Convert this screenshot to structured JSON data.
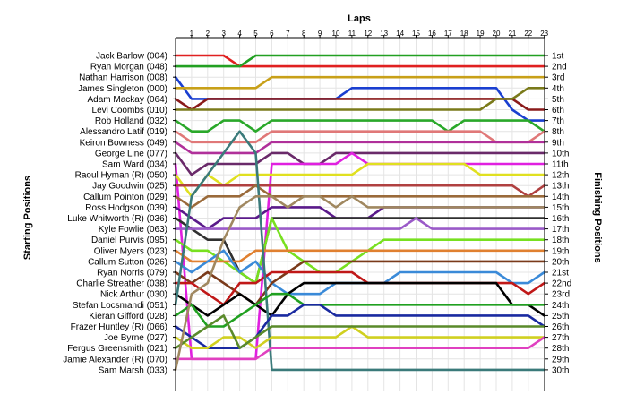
{
  "chart_data": {
    "type": "line",
    "title": "Laps",
    "left_title": "Starting Positions",
    "right_title": "Finishing Positions",
    "laps": [
      "1",
      "2",
      "3",
      "4",
      "5",
      "6",
      "7",
      "8",
      "9",
      "10",
      "11",
      "12",
      "13",
      "14",
      "15",
      "16",
      "17",
      "18",
      "19",
      "20",
      "21",
      "22",
      "23"
    ],
    "finish_labels": [
      "1st",
      "2nd",
      "3rd",
      "4th",
      "5th",
      "6th",
      "7th",
      "8th",
      "9th",
      "10th",
      "11th",
      "12th",
      "13th",
      "14th",
      "15th",
      "16th",
      "17th",
      "18th",
      "19th",
      "20th",
      "21st",
      "22nd",
      "23rd",
      "24th",
      "25th",
      "26th",
      "27th",
      "28th",
      "29th",
      "30th"
    ],
    "grid": true,
    "series": [
      {
        "name": "Jack Barlow (004)",
        "color": "#e02020",
        "positions": [
          1,
          1,
          1,
          1,
          2,
          2,
          2,
          2,
          2,
          2,
          2,
          2,
          2,
          2,
          2,
          2,
          2,
          2,
          2,
          2,
          2,
          2,
          2,
          2
        ]
      },
      {
        "name": "Ryan Morgan (048)",
        "color": "#22a022",
        "positions": [
          2,
          2,
          2,
          2,
          2,
          1,
          1,
          1,
          1,
          1,
          1,
          1,
          1,
          1,
          1,
          1,
          1,
          1,
          1,
          1,
          1,
          1,
          1,
          1
        ]
      },
      {
        "name": "Nathan Harrison (008)",
        "color": "#1a3fd0",
        "positions": [
          3,
          5,
          5,
          5,
          5,
          5,
          5,
          5,
          5,
          5,
          5,
          4,
          4,
          4,
          4,
          4,
          4,
          4,
          4,
          4,
          4,
          6,
          7,
          7
        ]
      },
      {
        "name": "James Singleton (000)",
        "color": "#c8a018",
        "positions": [
          4,
          4,
          4,
          4,
          4,
          4,
          3,
          3,
          3,
          3,
          3,
          3,
          3,
          3,
          3,
          3,
          3,
          3,
          3,
          3,
          3,
          3,
          3,
          3
        ]
      },
      {
        "name": "Adam Mackay (064)",
        "color": "#8a1a1a",
        "positions": [
          5,
          6,
          5,
          5,
          5,
          5,
          5,
          5,
          5,
          5,
          5,
          5,
          5,
          5,
          5,
          5,
          5,
          5,
          5,
          5,
          5,
          5,
          6,
          6
        ]
      },
      {
        "name": "Levi Coombs (010)",
        "color": "#7a7a1a",
        "positions": [
          6,
          6,
          6,
          6,
          6,
          6,
          6,
          6,
          6,
          6,
          6,
          6,
          6,
          6,
          6,
          6,
          6,
          6,
          6,
          6,
          5,
          5,
          4,
          4
        ]
      },
      {
        "name": "Rob Holland (032)",
        "color": "#2aa82a",
        "positions": [
          7,
          8,
          8,
          7,
          7,
          8,
          7,
          7,
          7,
          7,
          7,
          7,
          7,
          7,
          7,
          7,
          7,
          8,
          7,
          7,
          7,
          7,
          7,
          8
        ]
      },
      {
        "name": "Alessandro Latif (019)",
        "color": "#e07878",
        "positions": [
          8,
          9,
          9,
          9,
          9,
          9,
          8,
          8,
          8,
          8,
          8,
          8,
          8,
          8,
          8,
          8,
          8,
          8,
          8,
          8,
          9,
          9,
          9,
          8
        ]
      },
      {
        "name": "Keiron Bowness (049)",
        "color": "#b0309a",
        "positions": [
          9,
          10,
          10,
          10,
          10,
          10,
          9,
          9,
          9,
          9,
          9,
          9,
          9,
          9,
          9,
          9,
          9,
          9,
          9,
          9,
          9,
          9,
          9,
          9
        ]
      },
      {
        "name": "George Line (077)",
        "color": "#6a2a6a",
        "positions": [
          10,
          12,
          11,
          11,
          11,
          11,
          10,
          10,
          11,
          11,
          10,
          10,
          10,
          10,
          10,
          10,
          10,
          10,
          10,
          10,
          10,
          10,
          10,
          10
        ]
      },
      {
        "name": "Sam Ward (034)",
        "color": "#e020e0",
        "positions": [
          11,
          29,
          29,
          29,
          29,
          29,
          11,
          11,
          11,
          11,
          11,
          10,
          11,
          11,
          11,
          11,
          11,
          11,
          11,
          11,
          11,
          11,
          11,
          11
        ]
      },
      {
        "name": "Raoul Hyman (R) (050)",
        "color": "#e0e020",
        "positions": [
          12,
          14,
          12,
          13,
          12,
          12,
          12,
          12,
          12,
          12,
          12,
          12,
          11,
          11,
          11,
          11,
          11,
          11,
          11,
          12,
          12,
          12,
          12,
          12
        ]
      },
      {
        "name": "Jay Goodwin (025)",
        "color": "#b04040",
        "positions": [
          13,
          13,
          13,
          13,
          13,
          13,
          13,
          13,
          13,
          13,
          13,
          13,
          13,
          13,
          13,
          13,
          13,
          13,
          13,
          13,
          13,
          13,
          14,
          13
        ]
      },
      {
        "name": "Callum Pointon (029)",
        "color": "#9a6a3a",
        "positions": [
          14,
          15,
          14,
          14,
          14,
          13,
          14,
          14,
          14,
          14,
          14,
          14,
          14,
          14,
          14,
          14,
          14,
          14,
          14,
          14,
          14,
          14,
          14,
          14
        ]
      },
      {
        "name": "Ross Hodgson (039)",
        "color": "#5a1a8a",
        "positions": [
          15,
          16,
          17,
          16,
          16,
          16,
          15,
          15,
          15,
          15,
          16,
          16,
          16,
          15,
          15,
          15,
          15,
          15,
          15,
          15,
          15,
          15,
          15,
          15
        ]
      },
      {
        "name": "Luke Whitworth (R) (036)",
        "color": "#303030",
        "positions": [
          16,
          17,
          18,
          18,
          21,
          22,
          16,
          16,
          16,
          16,
          16,
          16,
          16,
          16,
          16,
          16,
          16,
          16,
          16,
          16,
          16,
          16,
          16,
          16
        ]
      },
      {
        "name": "Kyle Fowlie (063)",
        "color": "#9a5ac8",
        "positions": [
          17,
          17,
          17,
          17,
          17,
          17,
          17,
          17,
          17,
          17,
          17,
          17,
          17,
          17,
          17,
          16,
          17,
          17,
          17,
          17,
          17,
          17,
          17,
          17
        ]
      },
      {
        "name": "Daniel Purvis (095)",
        "color": "#78e020",
        "positions": [
          18,
          19,
          19,
          20,
          21,
          22,
          16,
          19,
          20,
          21,
          21,
          20,
          19,
          18,
          18,
          18,
          18,
          18,
          18,
          18,
          18,
          18,
          18,
          18
        ]
      },
      {
        "name": "Oliver Myers (023)",
        "color": "#e08030",
        "positions": [
          19,
          20,
          20,
          20,
          20,
          19,
          19,
          19,
          19,
          19,
          19,
          19,
          19,
          19,
          19,
          19,
          19,
          19,
          19,
          19,
          19,
          19,
          19,
          19
        ]
      },
      {
        "name": "Callum Sutton (026)",
        "color": "#3a8ad8",
        "positions": [
          20,
          21,
          20,
          19,
          21,
          20,
          22,
          23,
          23,
          23,
          22,
          22,
          22,
          22,
          21,
          21,
          21,
          21,
          21,
          21,
          21,
          22,
          22,
          21
        ]
      },
      {
        "name": "Ryan Norris (079)",
        "color": "#7a3a1a",
        "positions": [
          21,
          22,
          21,
          22,
          23,
          24,
          22,
          21,
          20,
          20,
          20,
          20,
          20,
          20,
          20,
          20,
          20,
          20,
          20,
          20,
          20,
          20,
          20,
          20
        ]
      },
      {
        "name": "Charlie Streather (038)",
        "color": "#c01818",
        "positions": [
          22,
          22,
          23,
          24,
          22,
          22,
          21,
          21,
          21,
          21,
          21,
          21,
          22,
          22,
          22,
          22,
          22,
          22,
          22,
          22,
          22,
          22,
          23,
          22
        ]
      },
      {
        "name": "Nick Arthur (030)",
        "color": "#000000",
        "positions": [
          23,
          24,
          25,
          24,
          23,
          24,
          25,
          23,
          22,
          22,
          22,
          22,
          22,
          22,
          22,
          22,
          22,
          22,
          22,
          22,
          22,
          24,
          24,
          25
        ]
      },
      {
        "name": "Stefan Locsmandi (051)",
        "color": "#3a7a7a",
        "positions": [
          24,
          14,
          12,
          10,
          8,
          10,
          30,
          30,
          30,
          30,
          30,
          30,
          30,
          30,
          30,
          30,
          30,
          30,
          30,
          30,
          30,
          30,
          30,
          30
        ]
      },
      {
        "name": "Kieran Gifford (028)",
        "color": "#20a020",
        "positions": [
          25,
          24,
          26,
          26,
          25,
          24,
          23,
          23,
          24,
          24,
          24,
          24,
          24,
          24,
          24,
          24,
          24,
          24,
          24,
          24,
          24,
          24,
          24,
          24
        ]
      },
      {
        "name": "Frazer Huntley (R) (066)",
        "color": "#1a2aa0",
        "positions": [
          26,
          27,
          28,
          28,
          28,
          27,
          25,
          25,
          24,
          24,
          25,
          25,
          25,
          25,
          25,
          25,
          25,
          25,
          25,
          25,
          25,
          25,
          25,
          26
        ]
      },
      {
        "name": "Joe Byrne (027)",
        "color": "#d0d020",
        "positions": [
          27,
          28,
          28,
          27,
          27,
          28,
          27,
          27,
          27,
          27,
          27,
          26,
          27,
          27,
          27,
          27,
          27,
          27,
          27,
          27,
          27,
          27,
          27,
          27
        ]
      },
      {
        "name": "Fergus Greensmith (021)",
        "color": "#5a8a2a",
        "positions": [
          28,
          27,
          26,
          25,
          28,
          27,
          26,
          26,
          26,
          26,
          26,
          26,
          26,
          26,
          26,
          26,
          26,
          26,
          26,
          26,
          26,
          26,
          26,
          26
        ]
      },
      {
        "name": "Jamie Alexander (R) (070)",
        "color": "#e040c0",
        "positions": [
          29,
          29,
          29,
          29,
          29,
          29,
          28,
          28,
          28,
          28,
          28,
          28,
          28,
          28,
          28,
          28,
          28,
          28,
          28,
          28,
          28,
          28,
          28,
          27
        ]
      },
      {
        "name": "Sam Marsh (033)",
        "color": "#a08860",
        "positions": [
          30,
          23,
          22,
          18,
          15,
          14,
          14,
          15,
          14,
          14,
          15,
          14,
          15,
          15,
          15,
          15,
          15,
          15,
          15,
          15,
          15,
          15,
          15,
          15
        ]
      }
    ]
  }
}
